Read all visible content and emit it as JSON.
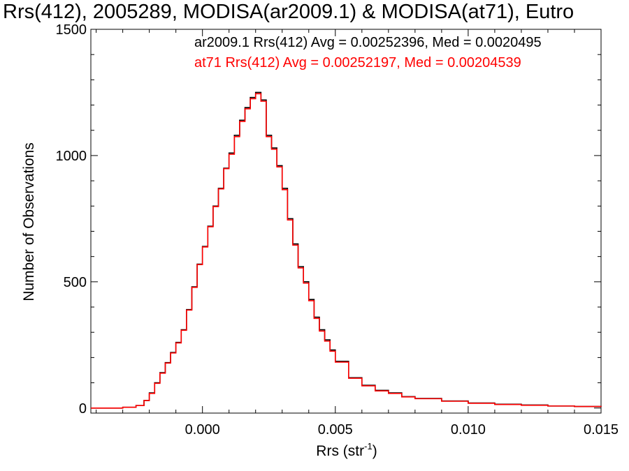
{
  "chart_data": {
    "type": "line",
    "title": "Rrs(412), 2005289, MODISA(ar2009.1) & MODISA(at71), Eutro",
    "xlabel": "Rrs (str",
    "xlabel_sup": "-1",
    "xlabel_close": ")",
    "ylabel": "Number of Observations",
    "xlim": [
      -0.0042,
      0.015
    ],
    "ylim": [
      -20,
      1500
    ],
    "xticks": [
      {
        "v": 0.0,
        "label": "0.000"
      },
      {
        "v": 0.005,
        "label": "0.005"
      },
      {
        "v": 0.01,
        "label": "0.010"
      },
      {
        "v": 0.015,
        "label": "0.015"
      }
    ],
    "yticks": [
      {
        "v": 0,
        "label": "0"
      },
      {
        "v": 500,
        "label": "500"
      },
      {
        "v": 1000,
        "label": "1000"
      },
      {
        "v": 1500,
        "label": "1500"
      }
    ],
    "series": [
      {
        "name": "ar2009.1",
        "color": "#000000",
        "legend": "ar2009.1 Rrs(412) Avg = 0.00252396, Med = 0.0020495",
        "x": [
          -0.0042,
          -0.003,
          -0.0025,
          -0.0022,
          -0.002,
          -0.0018,
          -0.0016,
          -0.0014,
          -0.0012,
          -0.001,
          -0.0008,
          -0.0006,
          -0.0004,
          -0.0002,
          0.0,
          0.0002,
          0.0004,
          0.0006,
          0.0008,
          0.001,
          0.0012,
          0.0014,
          0.0016,
          0.0018,
          0.002,
          0.0022,
          0.0024,
          0.0026,
          0.0028,
          0.003,
          0.0032,
          0.0034,
          0.0036,
          0.0038,
          0.004,
          0.0042,
          0.0044,
          0.0046,
          0.0048,
          0.005,
          0.0055,
          0.006,
          0.0065,
          0.007,
          0.0075,
          0.008,
          0.009,
          0.01,
          0.011,
          0.012,
          0.013,
          0.014,
          0.015
        ],
        "y": [
          0,
          3,
          10,
          30,
          60,
          100,
          140,
          180,
          220,
          260,
          310,
          390,
          480,
          570,
          640,
          720,
          800,
          870,
          950,
          1010,
          1080,
          1140,
          1190,
          1230,
          1250,
          1220,
          1080,
          1030,
          960,
          870,
          750,
          650,
          560,
          500,
          430,
          360,
          310,
          270,
          230,
          185,
          120,
          90,
          70,
          60,
          45,
          38,
          28,
          20,
          15,
          12,
          8,
          6,
          5
        ]
      },
      {
        "name": "at71",
        "color": "#ff0000",
        "legend": "at71 Rrs(412) Avg = 0.00252197, Med = 0.00204539",
        "x": [
          -0.0042,
          -0.003,
          -0.0025,
          -0.0022,
          -0.002,
          -0.0018,
          -0.0016,
          -0.0014,
          -0.0012,
          -0.001,
          -0.0008,
          -0.0006,
          -0.0004,
          -0.0002,
          0.0,
          0.0002,
          0.0004,
          0.0006,
          0.0008,
          0.001,
          0.0012,
          0.0014,
          0.0016,
          0.0018,
          0.002,
          0.0022,
          0.0024,
          0.0026,
          0.0028,
          0.003,
          0.0032,
          0.0034,
          0.0036,
          0.0038,
          0.004,
          0.0042,
          0.0044,
          0.0046,
          0.0048,
          0.005,
          0.0055,
          0.006,
          0.0065,
          0.007,
          0.0075,
          0.008,
          0.009,
          0.01,
          0.011,
          0.012,
          0.013,
          0.014,
          0.015
        ],
        "y": [
          0,
          3,
          10,
          30,
          58,
          98,
          138,
          178,
          218,
          258,
          308,
          388,
          478,
          568,
          638,
          718,
          798,
          868,
          948,
          1005,
          1075,
          1135,
          1185,
          1225,
          1245,
          1215,
          1075,
          1025,
          955,
          865,
          745,
          645,
          555,
          495,
          425,
          355,
          305,
          265,
          225,
          182,
          118,
          88,
          68,
          58,
          44,
          37,
          27,
          19,
          14,
          11,
          8,
          6,
          5
        ]
      }
    ],
    "grid": false
  }
}
